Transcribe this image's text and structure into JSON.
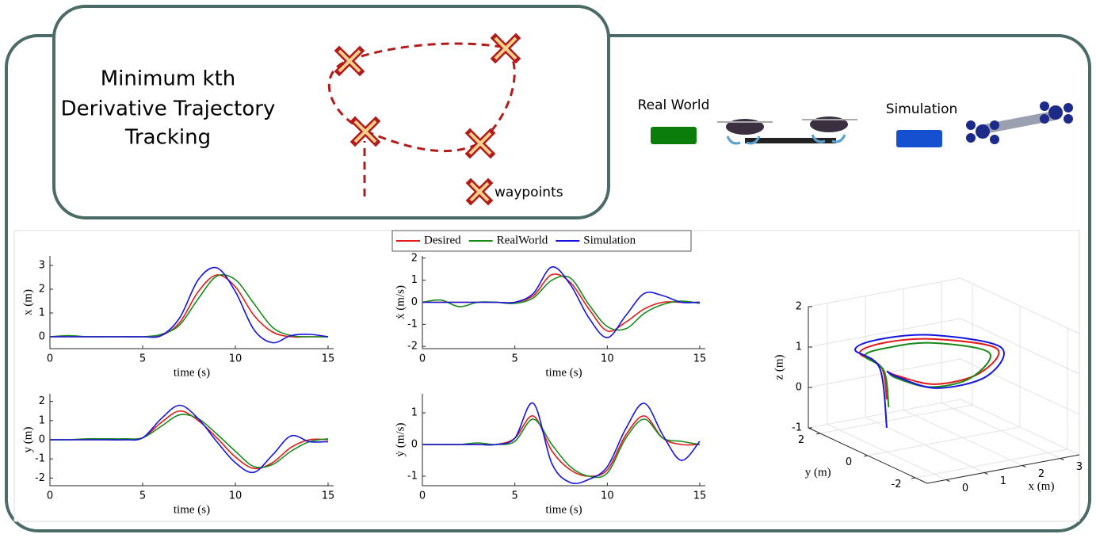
{
  "diagram": {
    "title_lines": [
      "Minimum kth",
      "Derivative Trajectory",
      "Tracking"
    ],
    "waypoints_label": "waypoints",
    "real_label": "Real World",
    "sim_label": "Simulation"
  },
  "chart_data": [
    {
      "type": "line",
      "ylabel": "x (m)",
      "xlabel": "time (s)",
      "x": [
        0,
        1,
        2,
        3,
        4,
        5,
        6,
        7,
        8,
        9,
        10,
        11,
        12,
        13,
        14,
        15
      ],
      "xlim": [
        0,
        15.3
      ],
      "xticks": [
        0,
        5,
        10,
        15
      ],
      "ylim": [
        -0.5,
        3.4
      ],
      "yticks": [
        0,
        1,
        2,
        3
      ],
      "series": [
        {
          "name": "Desired",
          "color": "#e31a1c",
          "values": [
            0,
            0,
            0,
            0,
            0,
            0,
            0.05,
            0.6,
            1.9,
            2.6,
            2.1,
            0.9,
            0.2,
            0,
            0,
            0
          ]
        },
        {
          "name": "RealWorld",
          "color": "#1a8a1a",
          "values": [
            0,
            0.05,
            0,
            0,
            0,
            0,
            0.1,
            0.5,
            1.6,
            2.55,
            2.4,
            1.4,
            0.4,
            0.05,
            0,
            0
          ]
        },
        {
          "name": "Simulation",
          "color": "#1414e0",
          "values": [
            0,
            0,
            0,
            0,
            0,
            0,
            0.05,
            0.8,
            2.4,
            2.9,
            1.9,
            0.3,
            -0.25,
            0.05,
            0.1,
            0
          ]
        }
      ]
    },
    {
      "type": "line",
      "ylabel": "y (m)",
      "xlabel": "time (s)",
      "x": [
        0,
        1,
        2,
        3,
        4,
        5,
        6,
        7,
        8,
        9,
        10,
        11,
        12,
        13,
        14,
        15
      ],
      "xlim": [
        0,
        15.3
      ],
      "xticks": [
        0,
        5,
        10,
        15
      ],
      "ylim": [
        -2.4,
        2.4
      ],
      "yticks": [
        -2,
        -1,
        0,
        1,
        2
      ],
      "series": [
        {
          "color": "#e31a1c",
          "values": [
            0,
            0,
            0,
            0,
            0,
            0.1,
            0.9,
            1.5,
            1.0,
            0.1,
            -0.9,
            -1.5,
            -1.2,
            -0.4,
            0,
            0
          ]
        },
        {
          "color": "#1a8a1a",
          "values": [
            0,
            0,
            0.05,
            0.05,
            0.05,
            0.1,
            0.7,
            1.3,
            1.1,
            0.3,
            -0.6,
            -1.4,
            -1.3,
            -0.6,
            -0.1,
            0.05
          ]
        },
        {
          "color": "#1414e0",
          "values": [
            0,
            0,
            0,
            0,
            0,
            0.1,
            1.1,
            1.8,
            1.1,
            -0.1,
            -1.2,
            -1.7,
            -0.8,
            0.2,
            -0.1,
            -0.1
          ]
        }
      ]
    },
    {
      "type": "line",
      "ylabel": "ẋ (m/s)",
      "xlabel": "time (s)",
      "x": [
        0,
        1,
        2,
        3,
        4,
        5,
        6,
        7,
        8,
        9,
        10,
        11,
        12,
        13,
        14,
        15
      ],
      "xlim": [
        0,
        15.3
      ],
      "xticks": [
        0,
        5,
        10,
        15
      ],
      "ylim": [
        -2.1,
        2.1
      ],
      "yticks": [
        -2,
        -1,
        0,
        1,
        2
      ],
      "series": [
        {
          "color": "#e31a1c",
          "values": [
            0,
            0,
            0,
            0,
            0,
            0,
            0.3,
            1.25,
            0.9,
            -0.3,
            -1.3,
            -0.9,
            -0.3,
            0,
            0,
            0
          ]
        },
        {
          "color": "#1a8a1a",
          "values": [
            0,
            0.1,
            -0.2,
            0,
            0,
            -0.05,
            0.2,
            1.0,
            1.1,
            -0.1,
            -1.1,
            -1.2,
            -0.5,
            -0.1,
            0.05,
            -0.05
          ]
        },
        {
          "color": "#1414e0",
          "values": [
            0,
            0,
            0,
            0,
            0,
            0,
            0.4,
            1.6,
            0.8,
            -0.7,
            -1.6,
            -0.6,
            0.4,
            0.3,
            0,
            0
          ]
        }
      ]
    },
    {
      "type": "line",
      "ylabel": "ẏ (m/s)",
      "xlabel": "time (s)",
      "x": [
        0,
        1,
        2,
        3,
        4,
        5,
        6,
        7,
        8,
        9,
        10,
        11,
        12,
        13,
        14,
        15
      ],
      "xlim": [
        0,
        15.3
      ],
      "xticks": [
        0,
        5,
        10,
        15
      ],
      "ylim": [
        -1.3,
        1.6
      ],
      "yticks": [
        -1,
        0,
        1
      ],
      "series": [
        {
          "color": "#e31a1c",
          "values": [
            0,
            0,
            0,
            0,
            0,
            0.2,
            0.9,
            -0.2,
            -0.8,
            -1,
            -0.8,
            0.3,
            0.9,
            0.2,
            0,
            0
          ]
        },
        {
          "color": "#1a8a1a",
          "values": [
            0,
            0,
            0,
            0.05,
            0,
            0.1,
            0.8,
            0,
            -0.7,
            -1.0,
            -0.9,
            0.2,
            0.8,
            0.2,
            0.1,
            0
          ]
        },
        {
          "color": "#1414e0",
          "values": [
            0,
            0,
            0,
            0,
            0,
            0.2,
            1.3,
            -0.6,
            -1.2,
            -1.1,
            -0.7,
            0.5,
            1.3,
            0.3,
            -0.5,
            0.1
          ]
        }
      ]
    },
    {
      "type": "line3d",
      "xlabel": "x (m)",
      "ylabel": "y (m)",
      "zlabel": "z (m)",
      "xlim": [
        -0.5,
        3.5
      ],
      "xticks": [
        0,
        1,
        2,
        3
      ],
      "ylim": [
        -2.5,
        2.5
      ],
      "yticks": [
        -2,
        0,
        2
      ],
      "zlim": [
        -1,
        2
      ],
      "zticks": [
        -1,
        0,
        1,
        2
      ],
      "series": [
        {
          "color": "#e31a1c",
          "x": [
            0,
            0.05,
            0.24,
            1.0,
            2.03,
            2.97,
            1.8,
            0.55,
            0.1,
            0
          ],
          "y": [
            0,
            0.3,
            1.52,
            1.6,
            1.22,
            0.12,
            -1.0,
            -1.16,
            -0.3,
            0
          ],
          "z": [
            0.3,
            1.0,
            1.0,
            1.1,
            1.1,
            1.0,
            0.9,
            0.9,
            0.95,
            1.0
          ]
        },
        {
          "color": "#1a8a1a",
          "x": [
            0.05,
            0.05,
            0.3,
            1.0,
            1.9,
            2.75,
            1.7,
            0.6,
            0.15,
            0.05
          ],
          "y": [
            0,
            0.2,
            1.4,
            1.5,
            1.15,
            0.1,
            -0.8,
            -0.9,
            -0.2,
            0
          ],
          "z": [
            0.1,
            0.95,
            0.95,
            1.0,
            1.05,
            0.95,
            0.75,
            0.75,
            0.85,
            0.95
          ]
        },
        {
          "color": "#1414e0",
          "x": [
            0,
            0,
            0.2,
            1.0,
            2.1,
            3.1,
            1.9,
            0.5,
            0.05,
            0
          ],
          "y": [
            0,
            0.3,
            1.65,
            1.75,
            1.35,
            0.15,
            -1.15,
            -1.3,
            -0.35,
            0
          ],
          "z": [
            -0.4,
            1.0,
            1.05,
            1.15,
            1.15,
            1.0,
            0.85,
            0.85,
            0.95,
            1.0
          ]
        }
      ]
    }
  ]
}
